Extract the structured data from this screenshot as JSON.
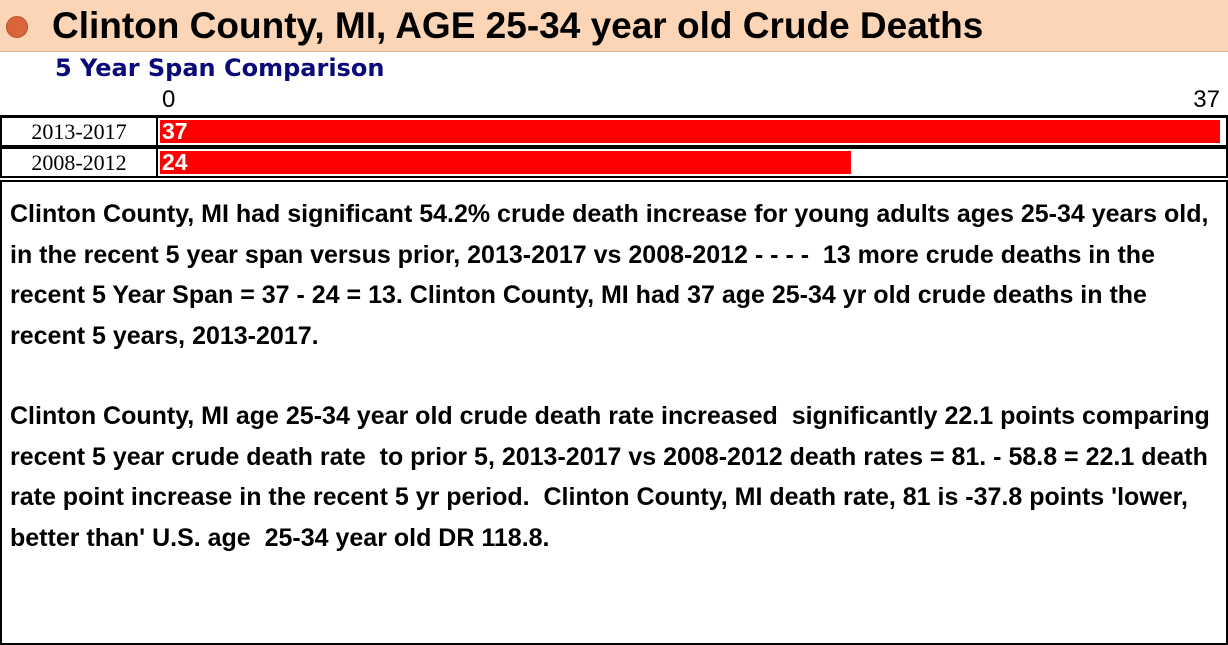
{
  "header": {
    "title": "Clinton County, MI, AGE 25-34 year old Crude Deaths",
    "subtitle": "5 Year Span Comparison",
    "accent_color": "#d9663b",
    "background_color": "#fbd5b5"
  },
  "chart_data": {
    "type": "bar",
    "orientation": "horizontal",
    "title": "Clinton County, MI, AGE 25-34 year old Crude Deaths",
    "subtitle": "5 Year Span Comparison",
    "categories": [
      "2013-2017",
      "2008-2012"
    ],
    "values": [
      37,
      24
    ],
    "value_labels": [
      "37",
      "24"
    ],
    "xlim": [
      0,
      37
    ],
    "tick_labels": [
      "0",
      "37"
    ],
    "bar_color": "#ff0000",
    "grid": false
  },
  "description": {
    "paragraph1": "Clinton County, MI had significant 54.2% crude death increase for young adults ages 25-34 years old, in the recent 5 year span versus prior, 2013-2017 vs 2008-2012 - - - -  13 more crude deaths in the recent 5 Year Span = 37 - 24 = 13. Clinton County, MI had 37 age 25-34 yr old crude deaths in the recent 5 years, 2013-2017.",
    "paragraph2": "Clinton County, MI age 25-34 year old crude death rate increased  significantly 22.1 points comparing recent 5 year crude death rate  to prior 5, 2013-2017 vs 2008-2012 death rates = 81. - 58.8 = 22.1 death rate point increase in the recent 5 yr period.  Clinton County, MI death rate, 81 is -37.8 points 'lower, better than' U.S. age  25-34 year old DR 118.8."
  }
}
